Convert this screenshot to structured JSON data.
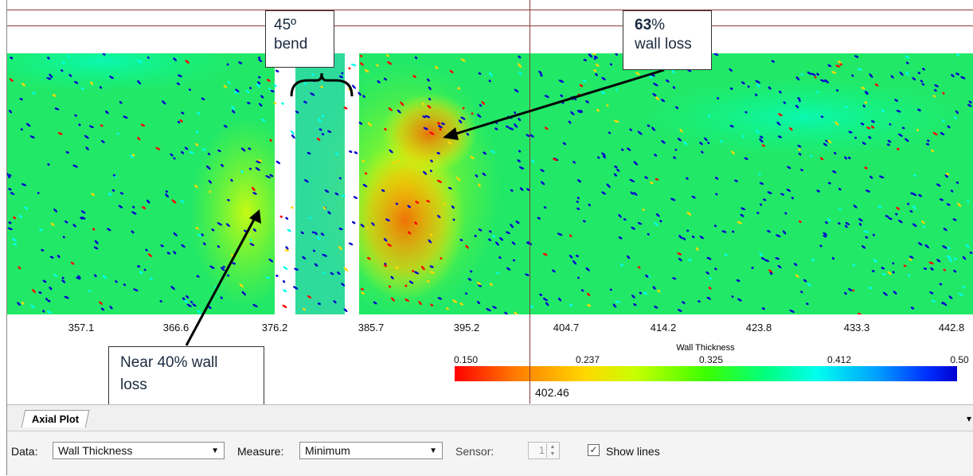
{
  "axis": {
    "ticks": [
      "357.1",
      "366.6",
      "376.2",
      "385.7",
      "395.2",
      "404.7",
      "414.2",
      "423.8",
      "433.3",
      "442.8"
    ]
  },
  "colorbar": {
    "title": "Wall Thickness",
    "ticks": [
      "0.150",
      "0.237",
      "0.325",
      "0.412",
      "0.50"
    ],
    "colors": [
      "#ff0000",
      "#ffd800",
      "#3cff00",
      "#00ffee",
      "#0000d0"
    ]
  },
  "cursor": {
    "value": "402.46"
  },
  "annotations": {
    "bend": {
      "line1": "45º",
      "line2": "bend"
    },
    "loss63": {
      "bold": "63",
      "suffix": "%",
      "line2": "wall loss"
    },
    "loss40": {
      "line1": "Near 40% wall",
      "line2": "loss"
    }
  },
  "panel": {
    "tab_label": "Axial Plot",
    "data_label": "Data:",
    "data_value": "Wall Thickness",
    "measure_label": "Measure:",
    "measure_value": "Minimum",
    "sensor_label": "Sensor:",
    "sensor_value": "1",
    "show_lines_label": "Show lines",
    "show_lines_checked": true
  }
}
